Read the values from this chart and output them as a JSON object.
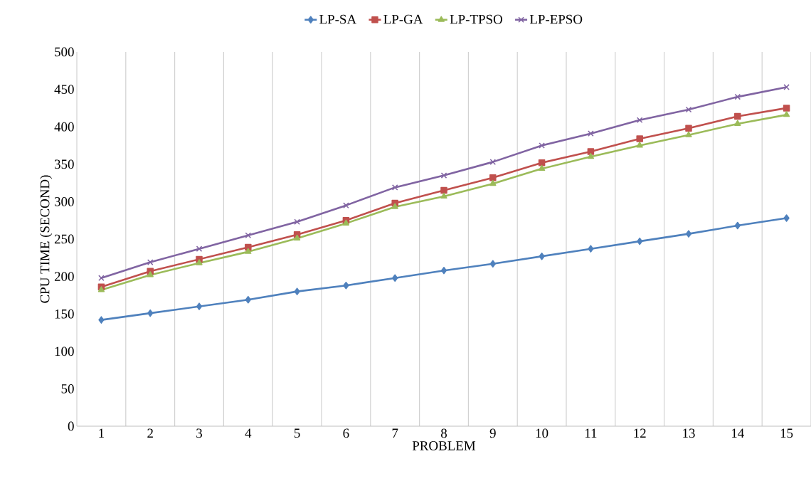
{
  "chart_data": {
    "type": "line",
    "xlabel": "PROBLEM",
    "ylabel": "CPU TIME (SECOND)",
    "categories": [
      "1",
      "2",
      "3",
      "4",
      "5",
      "6",
      "7",
      "8",
      "9",
      "10",
      "11",
      "12",
      "13",
      "14",
      "15"
    ],
    "series": [
      {
        "name": "LP-SA",
        "color": "#4f81bd",
        "marker": "diamond",
        "values": [
          142,
          151,
          160,
          169,
          180,
          188,
          198,
          208,
          217,
          227,
          237,
          247,
          257,
          268,
          278
        ]
      },
      {
        "name": "LP-GA",
        "color": "#c0504d",
        "marker": "square",
        "values": [
          186,
          207,
          223,
          239,
          256,
          275,
          298,
          315,
          332,
          352,
          367,
          384,
          398,
          414,
          425
        ]
      },
      {
        "name": "LP-TPSO",
        "color": "#9bbb59",
        "marker": "triangle",
        "values": [
          182,
          202,
          218,
          233,
          251,
          271,
          293,
          307,
          324,
          344,
          360,
          375,
          389,
          404,
          416
        ]
      },
      {
        "name": "LP-EPSO",
        "color": "#8064a2",
        "marker": "cross",
        "values": [
          198,
          219,
          237,
          255,
          273,
          295,
          319,
          335,
          353,
          375,
          391,
          409,
          423,
          440,
          453
        ]
      }
    ],
    "ylim": [
      0,
      500
    ],
    "yticks": [
      0,
      50,
      100,
      150,
      200,
      250,
      300,
      350,
      400,
      450,
      500
    ],
    "grid": "x",
    "legend": "top",
    "line_style": "solid"
  }
}
